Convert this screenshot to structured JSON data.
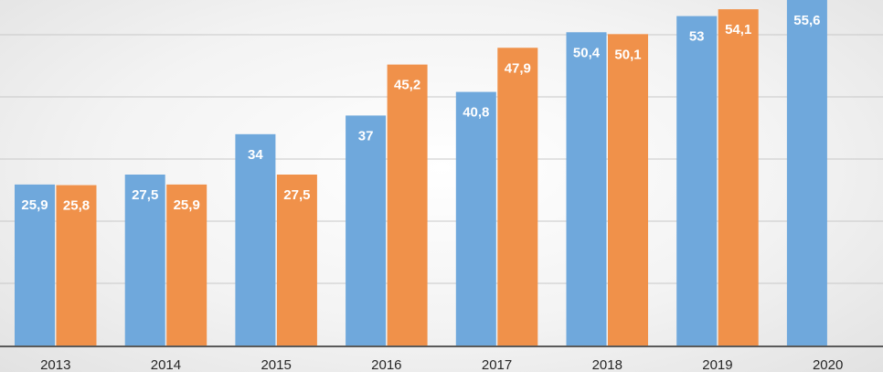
{
  "chart_data": {
    "type": "bar",
    "categories": [
      "2013",
      "2014",
      "2015",
      "2016",
      "2017",
      "2018",
      "2019",
      "2020"
    ],
    "series": [
      {
        "values": [
          25.9,
          27.5,
          34,
          37,
          40.8,
          50.4,
          53,
          55.6
        ]
      },
      {
        "values": [
          25.8,
          25.9,
          27.5,
          45.2,
          47.9,
          50.1,
          54.1,
          null
        ]
      }
    ],
    "data_labels": [
      [
        "25,9",
        "27,5",
        "34",
        "37",
        "40,8",
        "50,4",
        "53",
        "55,6"
      ],
      [
        "25,8",
        "25,9",
        "27,5",
        "45,2",
        "47,9",
        "50,1",
        "54,1",
        null
      ]
    ],
    "ylim": [
      0,
      55
    ],
    "gridlines": [
      10,
      20,
      30,
      40,
      50
    ],
    "grid": true,
    "legend": "none"
  },
  "colors": {
    "series": [
      "#6fa8dc",
      "#f0914a"
    ],
    "grid": "#c8c8c8",
    "axis": "#5a5a5a",
    "label": "#ffffff",
    "tick": "#262626"
  }
}
